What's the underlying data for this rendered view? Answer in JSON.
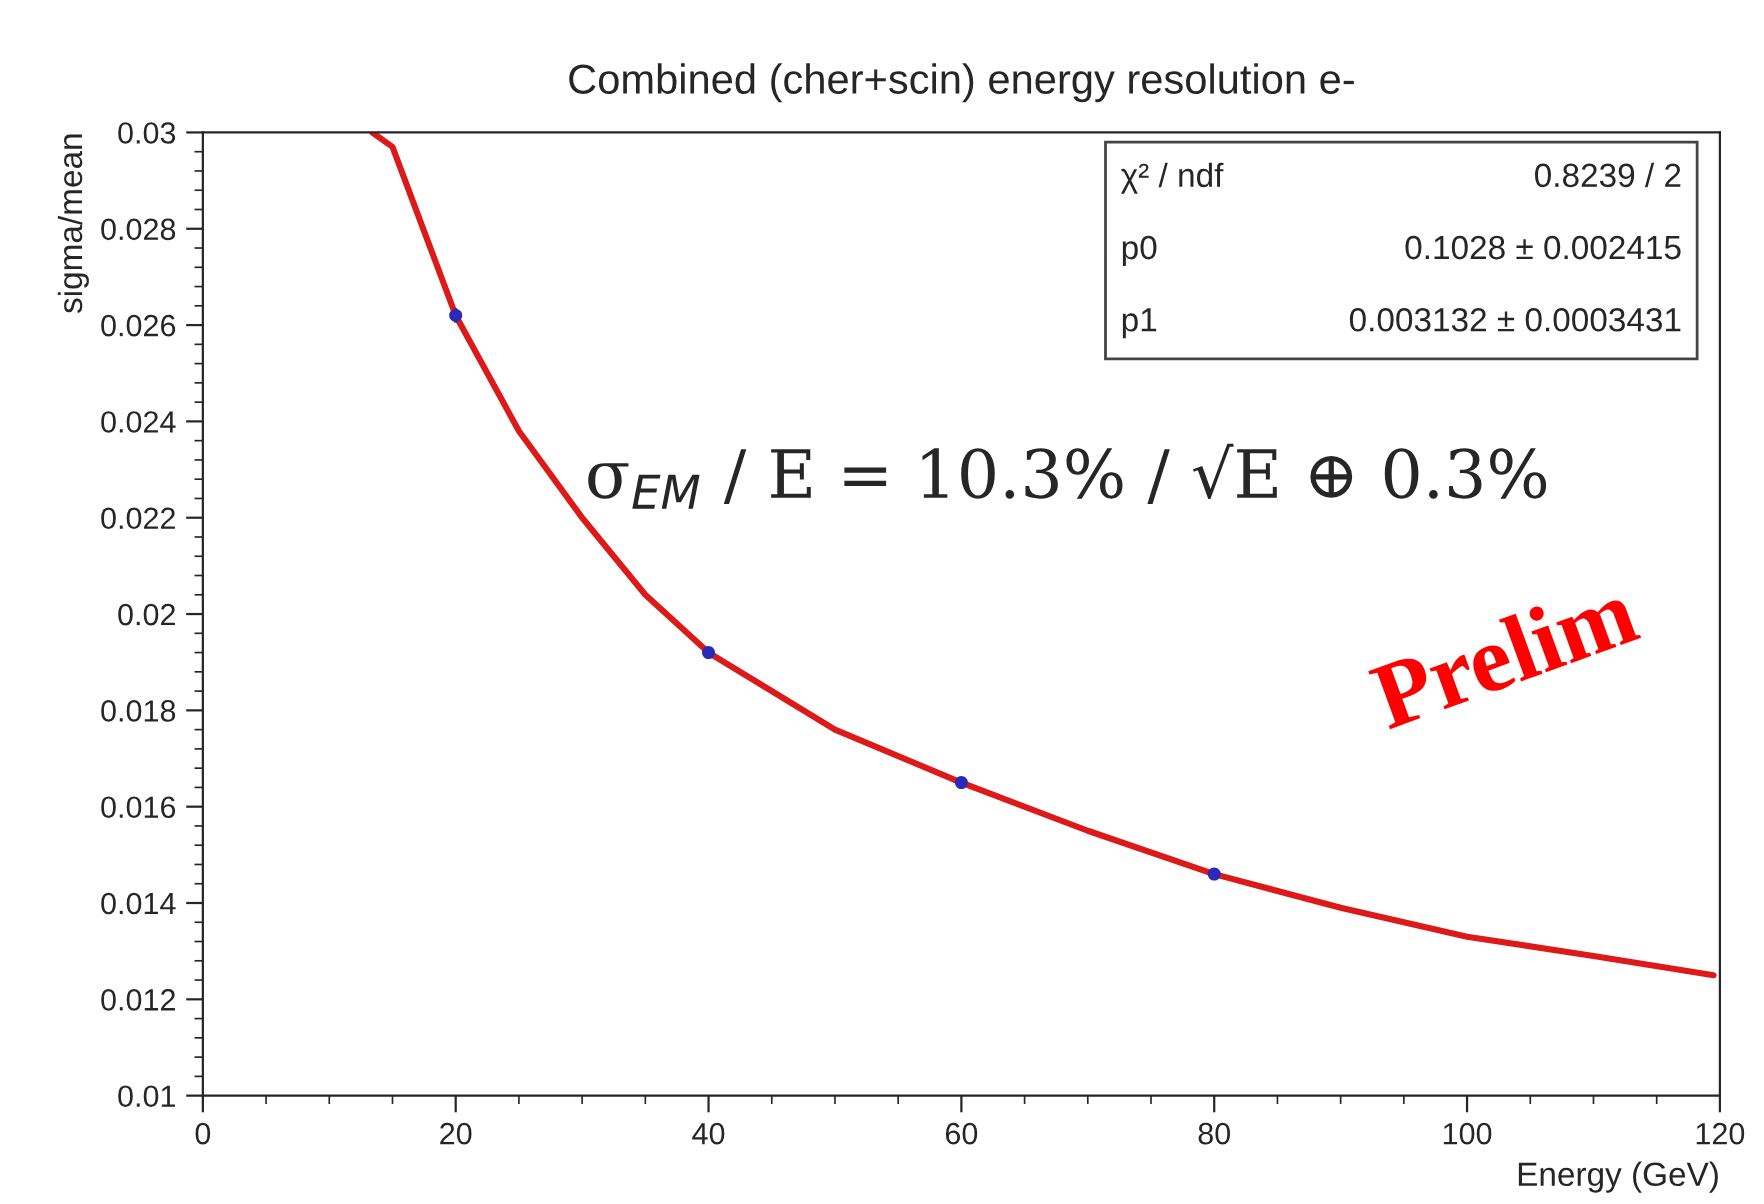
{
  "chart_data": {
    "type": "scatter",
    "title": "Combined (cher+scin) energy resolution e-",
    "xlabel": "Energy (GeV)",
    "ylabel": "sigma/mean",
    "xlim": [
      0,
      120
    ],
    "xticks": [
      0,
      20,
      40,
      60,
      80,
      100,
      120
    ],
    "ylim": [
      0.01,
      0.03
    ],
    "yticks": [
      0.01,
      0.012,
      0.014,
      0.016,
      0.018,
      0.02,
      0.022,
      0.024,
      0.026,
      0.028,
      0.03
    ],
    "grid": false,
    "legend": false,
    "series": [
      {
        "marker": "circle",
        "color": "#2a2ab8",
        "x": [
          20,
          40,
          60,
          80
        ],
        "values": [
          0.0262,
          0.0192,
          0.0165,
          0.0146
        ],
        "errors": [
          0.00015,
          null,
          null,
          null
        ]
      },
      {
        "type": "line",
        "color": "#dd1a1a",
        "line_style": "solid",
        "x": [
          13.4,
          15,
          17,
          20,
          25,
          30,
          35,
          40,
          50,
          60,
          70,
          80,
          90,
          100,
          110,
          119.5
        ],
        "values": [
          0.03,
          0.0297,
          0.0283,
          0.0262,
          0.0238,
          0.022,
          0.0204,
          0.0192,
          0.0176,
          0.0165,
          0.0155,
          0.0146,
          0.0139,
          0.0133,
          0.0129,
          0.0125
        ]
      }
    ],
    "annotations": [
      "χ² / ndf",
      "0.8239 / 2",
      "p0",
      "0.1028 ± 0.002415",
      "p1",
      "0.003132 ± 0.0003431",
      "σ$_{EM}$ / E = 10.3% / √E ⊕ 0.3%",
      "Prelim"
    ]
  }
}
